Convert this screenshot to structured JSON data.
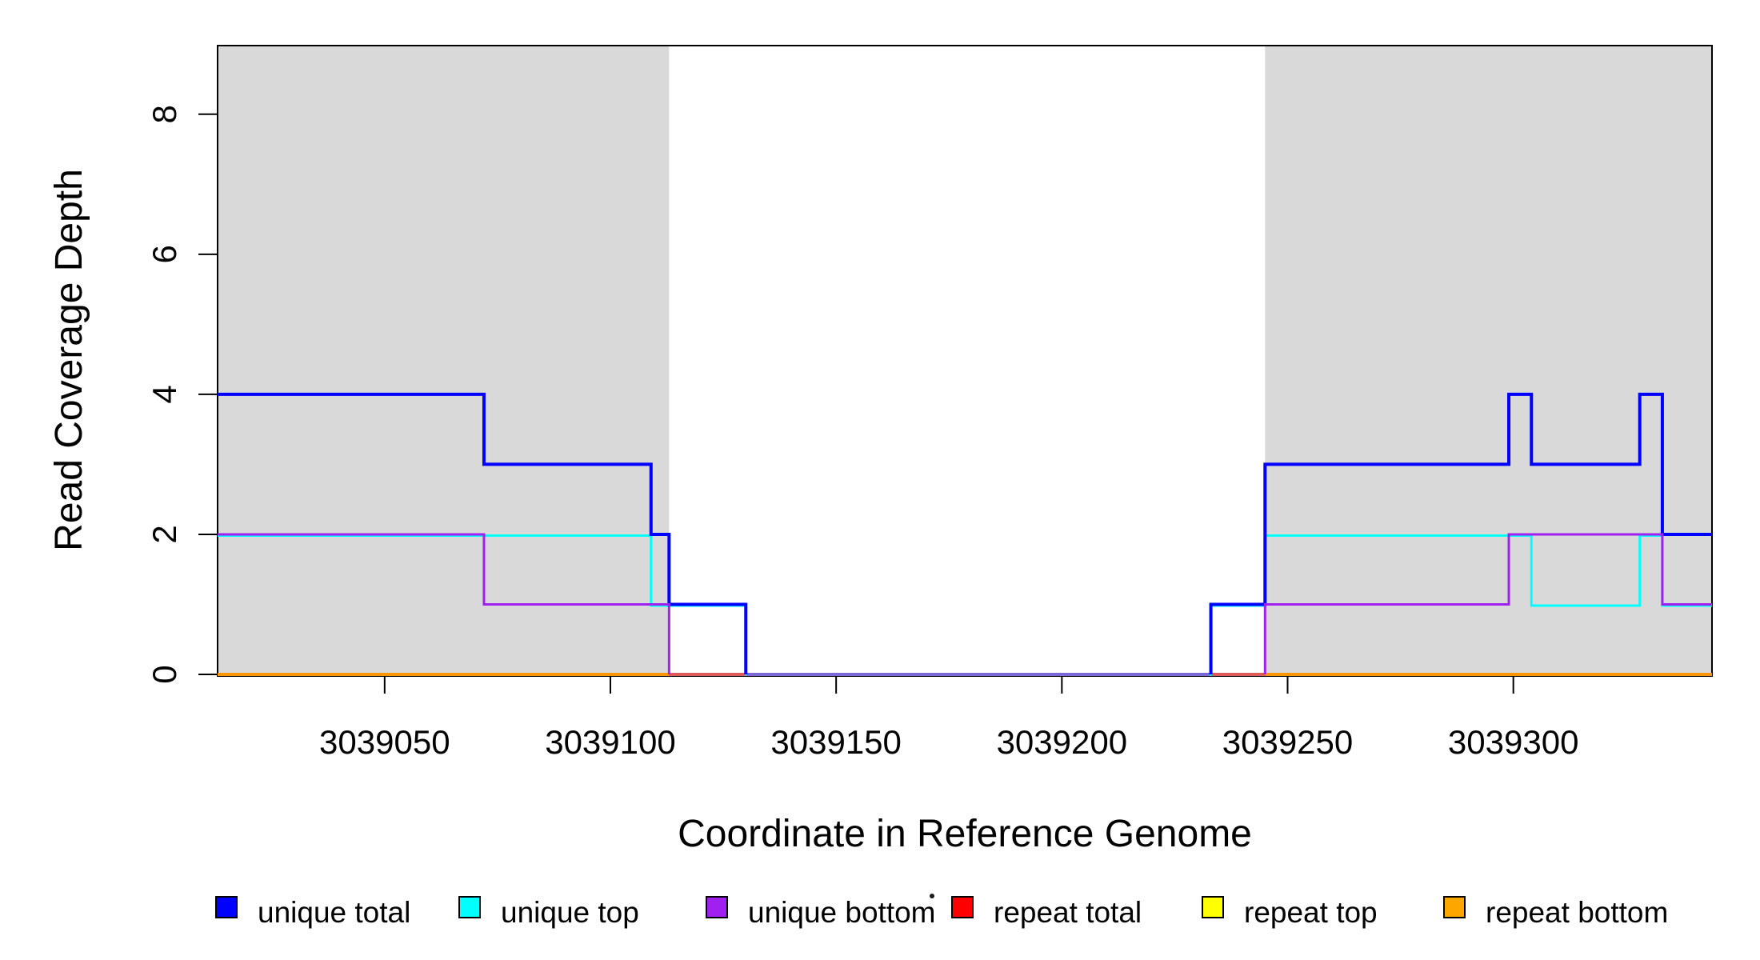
{
  "figure": {
    "background": "#ffffff",
    "region_fill": "#d9d9d9",
    "box_color": "#000000"
  },
  "chart_data": {
    "type": "line",
    "step": true,
    "title": "",
    "xlabel": "Coordinate in Reference Genome",
    "ylabel": "Read Coverage Depth",
    "xlim": [
      3039013,
      3039344
    ],
    "ylim": [
      0,
      8.98
    ],
    "grid": false,
    "legend_position": "bottom",
    "x_ticks": [
      3039050,
      3039100,
      3039150,
      3039200,
      3039250,
      3039300
    ],
    "x_tick_labels": [
      "3039050",
      "3039100",
      "3039150",
      "3039200",
      "3039250",
      "3039300"
    ],
    "y_ticks": [
      0,
      2,
      4,
      6,
      8
    ],
    "y_tick_labels": [
      "0",
      "2",
      "4",
      "6",
      "8"
    ],
    "shaded_regions": [
      {
        "name": "repeat-region-left",
        "x1": 3039013,
        "x2": 3039113
      },
      {
        "name": "repeat-region-right",
        "x1": 3039245,
        "x2": 3039344
      }
    ],
    "series": [
      {
        "name": "unique total",
        "color": "#0000ff",
        "width": 4,
        "segments": [
          [
            [
              3039013,
              4
            ],
            [
              3039072,
              4
            ],
            [
              3039072,
              3
            ],
            [
              3039109,
              3
            ],
            [
              3039109,
              2
            ],
            [
              3039113,
              2
            ],
            [
              3039113,
              1
            ],
            [
              3039130,
              1
            ],
            [
              3039130,
              0
            ]
          ],
          [
            [
              3039233,
              0
            ],
            [
              3039233,
              1
            ],
            [
              3039245,
              1
            ],
            [
              3039245,
              3
            ],
            [
              3039299,
              3
            ],
            [
              3039299,
              4
            ],
            [
              3039304,
              4
            ],
            [
              3039304,
              3
            ],
            [
              3039328,
              3
            ],
            [
              3039328,
              4
            ],
            [
              3039333,
              4
            ],
            [
              3039333,
              2
            ],
            [
              3039344,
              2
            ]
          ]
        ]
      },
      {
        "name": "unique top",
        "color": "#00ffff",
        "width": 3,
        "segments": [
          [
            [
              3039013,
              2
            ],
            [
              3039109,
              2
            ],
            [
              3039109,
              1
            ],
            [
              3039130,
              1
            ],
            [
              3039130,
              0
            ]
          ],
          [
            [
              3039233,
              0
            ],
            [
              3039233,
              1
            ],
            [
              3039245,
              1
            ],
            [
              3039245,
              2
            ],
            [
              3039304,
              2
            ],
            [
              3039304,
              1
            ],
            [
              3039328,
              1
            ],
            [
              3039328,
              2
            ],
            [
              3039333,
              2
            ],
            [
              3039333,
              1
            ],
            [
              3039344,
              1
            ]
          ]
        ]
      },
      {
        "name": "unique bottom",
        "color": "#a020f0",
        "width": 3,
        "segments": [
          [
            [
              3039013,
              2
            ],
            [
              3039072,
              2
            ],
            [
              3039072,
              1
            ],
            [
              3039113,
              1
            ],
            [
              3039113,
              0
            ]
          ],
          [
            [
              3039245,
              0
            ],
            [
              3039245,
              1
            ],
            [
              3039299,
              1
            ],
            [
              3039299,
              2
            ],
            [
              3039333,
              2
            ],
            [
              3039333,
              1
            ],
            [
              3039344,
              1
            ]
          ]
        ]
      },
      {
        "name": "repeat total",
        "color": "#ff0000",
        "width": 3,
        "segments": [
          [
            [
              3039113,
              0
            ],
            [
              3039245,
              0
            ]
          ]
        ]
      },
      {
        "name": "repeat top",
        "color": "#ffff00",
        "width": 3,
        "segments": [
          [
            [
              3039013,
              0
            ],
            [
              3039344,
              0
            ]
          ]
        ]
      },
      {
        "name": "repeat bottom",
        "color": "#ffa500",
        "width": 4,
        "segments": [
          [
            [
              3039013,
              0
            ],
            [
              3039344,
              0
            ]
          ]
        ]
      }
    ],
    "zero_line_segments": [
      {
        "x1": 3039013,
        "x2": 3039113,
        "color": "#ff9500",
        "meaning": "repeat bottom on top (repeat region)"
      },
      {
        "x1": 3039113,
        "x2": 3039130,
        "color": "#e05a5a",
        "meaning": "repeat total visible in gap"
      },
      {
        "x1": 3039130,
        "x2": 3039233,
        "color": "#7b68d8",
        "meaning": "unique total/bottom overlap at zero"
      },
      {
        "x1": 3039233,
        "x2": 3039245,
        "color": "#e05a5a",
        "meaning": "repeat total visible in gap"
      },
      {
        "x1": 3039245,
        "x2": 3039344,
        "color": "#ff9500",
        "meaning": "repeat bottom on top (repeat region)"
      }
    ],
    "legend": [
      {
        "label": "unique total",
        "color": "#0000ff"
      },
      {
        "label": "unique top",
        "color": "#00ffff"
      },
      {
        "label": "unique bottom",
        "color": "#a020f0"
      },
      {
        "label": "repeat total",
        "color": "#ff0000"
      },
      {
        "label": "repeat top",
        "color": "#ffff00"
      },
      {
        "label": "repeat bottom",
        "color": "#ffa500"
      }
    ],
    "stray_dot": {
      "present": true
    }
  }
}
